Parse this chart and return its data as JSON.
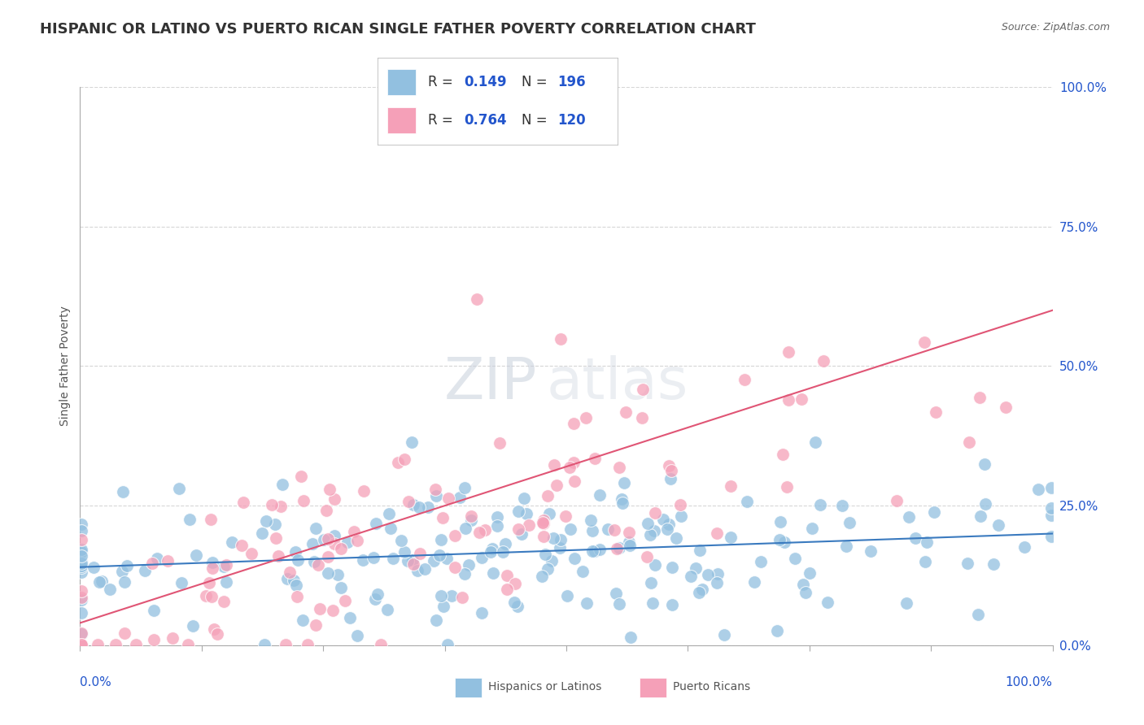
{
  "title": "HISPANIC OR LATINO VS PUERTO RICAN SINGLE FATHER POVERTY CORRELATION CHART",
  "source": "Source: ZipAtlas.com",
  "ylabel": "Single Father Poverty",
  "ytick_vals": [
    0.0,
    0.25,
    0.5,
    0.75,
    1.0
  ],
  "ytick_labels": [
    "0.0%",
    "25.0%",
    "50.0%",
    "75.0%",
    "100.0%"
  ],
  "blue_r": 0.149,
  "blue_n": 196,
  "pink_r": 0.764,
  "pink_n": 120,
  "blue_color": "#92c0e0",
  "pink_color": "#f5a0b8",
  "blue_line_color": "#3a7abf",
  "pink_line_color": "#e05575",
  "background_color": "#ffffff",
  "watermark_zip": "ZIP",
  "watermark_atlas": "atlas",
  "title_fontsize": 13,
  "axis_label_fontsize": 10,
  "tick_fontsize": 11,
  "legend_value_color": "#2255cc",
  "legend_label_color": "#333333",
  "grid_color": "#cccccc",
  "grid_linestyle": "--",
  "grid_alpha": 0.8,
  "xlim": [
    0.0,
    1.0
  ],
  "ylim": [
    0.0,
    1.0
  ],
  "blue_line_y0": 0.14,
  "blue_line_y1": 0.2,
  "pink_line_y0": 0.04,
  "pink_line_y1": 0.6
}
